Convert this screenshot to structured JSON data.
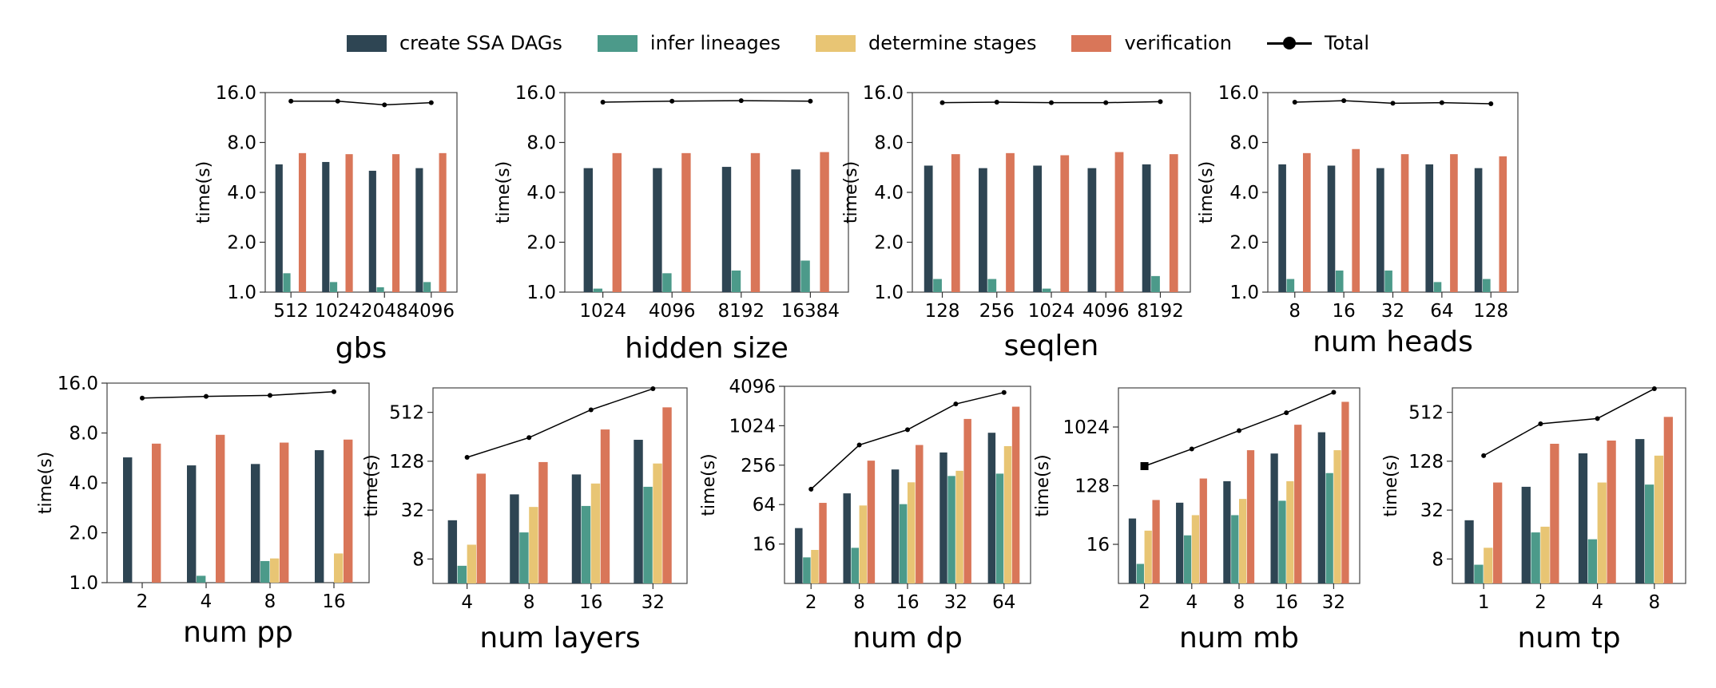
{
  "legend": [
    {
      "label": "create SSA DAGs",
      "color": "#2e4553",
      "kind": "bar"
    },
    {
      "label": "infer lineages",
      "color": "#4c9a8a",
      "kind": "bar"
    },
    {
      "label": "determine stages",
      "color": "#e8c574",
      "kind": "bar"
    },
    {
      "label": "verification",
      "color": "#d97659",
      "kind": "bar"
    },
    {
      "label": "Total",
      "color": "#000000",
      "kind": "line"
    }
  ],
  "chart_data": [
    {
      "type": "bar",
      "xlabel": "gbs",
      "ylabel": "time(s)",
      "ylim": [
        1,
        16
      ],
      "yscale": "log2",
      "yticks": [
        "1.0",
        "2.0",
        "4.0",
        "8.0",
        "16.0"
      ],
      "categories": [
        "512",
        "1024",
        "2048",
        "4096"
      ],
      "series": [
        {
          "name": "create SSA DAGs",
          "values": [
            5.9,
            6.1,
            5.4,
            5.6
          ]
        },
        {
          "name": "infer lineages",
          "values": [
            1.3,
            1.15,
            1.07,
            1.15
          ]
        },
        {
          "name": "determine stages",
          "values": [
            1.0,
            1.0,
            1.0,
            1.0
          ]
        },
        {
          "name": "verification",
          "values": [
            6.9,
            6.8,
            6.8,
            6.9
          ]
        },
        {
          "name": "Total",
          "values": [
            14.2,
            14.2,
            13.5,
            13.9
          ]
        }
      ]
    },
    {
      "type": "bar",
      "xlabel": "hidden size",
      "ylabel": "time(s)",
      "ylim": [
        1,
        16
      ],
      "yscale": "log2",
      "yticks": [
        "1.0",
        "2.0",
        "4.0",
        "8.0",
        "16.0"
      ],
      "categories": [
        "1024",
        "4096",
        "8192",
        "16384"
      ],
      "series": [
        {
          "name": "create SSA DAGs",
          "values": [
            5.6,
            5.6,
            5.7,
            5.5
          ]
        },
        {
          "name": "infer lineages",
          "values": [
            1.05,
            1.3,
            1.35,
            1.55
          ]
        },
        {
          "name": "determine stages",
          "values": [
            1.0,
            1.0,
            1.0,
            1.0
          ]
        },
        {
          "name": "verification",
          "values": [
            6.9,
            6.9,
            6.9,
            7.0
          ]
        },
        {
          "name": "Total",
          "values": [
            14.0,
            14.2,
            14.3,
            14.2
          ]
        }
      ]
    },
    {
      "type": "bar",
      "xlabel": "seqlen",
      "ylabel": "time(s)",
      "ylim": [
        1,
        16
      ],
      "yscale": "log2",
      "yticks": [
        "1.0",
        "2.0",
        "4.0",
        "8.0",
        "16.0"
      ],
      "categories": [
        "128",
        "256",
        "1024",
        "4096",
        "8192"
      ],
      "series": [
        {
          "name": "create SSA DAGs",
          "values": [
            5.8,
            5.6,
            5.8,
            5.6,
            5.9
          ]
        },
        {
          "name": "infer lineages",
          "values": [
            1.2,
            1.2,
            1.05,
            1.0,
            1.25
          ]
        },
        {
          "name": "determine stages",
          "values": [
            1.0,
            1.0,
            1.0,
            1.0,
            1.0
          ]
        },
        {
          "name": "verification",
          "values": [
            6.8,
            6.9,
            6.7,
            7.0,
            6.8
          ]
        },
        {
          "name": "Total",
          "values": [
            13.9,
            14.0,
            13.9,
            13.9,
            14.1
          ]
        }
      ]
    },
    {
      "type": "bar",
      "xlabel": "num heads",
      "ylabel": "time(s)",
      "ylim": [
        1,
        16
      ],
      "yscale": "log2",
      "yticks": [
        "1.0",
        "2.0",
        "4.0",
        "8.0",
        "16.0"
      ],
      "categories": [
        "8",
        "16",
        "32",
        "64",
        "128"
      ],
      "series": [
        {
          "name": "create SSA DAGs",
          "values": [
            5.9,
            5.8,
            5.6,
            5.9,
            5.6
          ]
        },
        {
          "name": "infer lineages",
          "values": [
            1.2,
            1.35,
            1.35,
            1.15,
            1.2
          ]
        },
        {
          "name": "determine stages",
          "values": [
            1.0,
            1.0,
            1.0,
            1.0,
            1.0
          ]
        },
        {
          "name": "verification",
          "values": [
            6.9,
            7.3,
            6.8,
            6.8,
            6.6
          ]
        },
        {
          "name": "Total",
          "values": [
            14.0,
            14.3,
            13.8,
            13.9,
            13.7
          ]
        }
      ]
    },
    {
      "type": "bar",
      "xlabel": "num pp",
      "ylabel": "time(s)",
      "ylim": [
        1,
        16
      ],
      "yscale": "log2",
      "yticks": [
        "1.0",
        "2.0",
        "4.0",
        "8.0",
        "16.0"
      ],
      "categories": [
        "2",
        "4",
        "8",
        "16"
      ],
      "series": [
        {
          "name": "create SSA DAGs",
          "values": [
            5.7,
            5.1,
            5.2,
            6.3
          ]
        },
        {
          "name": "infer lineages",
          "values": [
            1.0,
            1.1,
            1.35,
            1.0
          ]
        },
        {
          "name": "determine stages",
          "values": [
            1.0,
            1.0,
            1.4,
            1.5
          ]
        },
        {
          "name": "verification",
          "values": [
            6.9,
            7.8,
            7.0,
            7.3
          ]
        },
        {
          "name": "Total",
          "values": [
            13.0,
            13.3,
            13.5,
            14.2
          ]
        }
      ]
    },
    {
      "type": "bar",
      "xlabel": "num layers",
      "ylabel": "time(s)",
      "ylim": [
        4,
        1024
      ],
      "yscale": "log2",
      "yticks": [
        "8",
        "32",
        "128",
        "512"
      ],
      "categories": [
        "4",
        "8",
        "16",
        "32"
      ],
      "series": [
        {
          "name": "create SSA DAGs",
          "values": [
            24,
            50,
            88,
            235
          ]
        },
        {
          "name": "infer lineages",
          "values": [
            6.6,
            17,
            36,
            62
          ]
        },
        {
          "name": "determine stages",
          "values": [
            12,
            35,
            68,
            120
          ]
        },
        {
          "name": "verification",
          "values": [
            90,
            125,
            315,
            590
          ]
        },
        {
          "name": "Total",
          "values": [
            143,
            250,
            550,
            1000
          ]
        }
      ]
    },
    {
      "type": "bar",
      "xlabel": "num dp",
      "ylabel": "time(s)",
      "ylim": [
        4,
        4096
      ],
      "yscale": "log2",
      "yticks": [
        "16",
        "64",
        "256",
        "1024",
        "4096"
      ],
      "categories": [
        "2",
        "8",
        "16",
        "32",
        "64"
      ],
      "series": [
        {
          "name": "create SSA DAGs",
          "values": [
            28,
            95,
            220,
            400,
            800
          ]
        },
        {
          "name": "infer lineages",
          "values": [
            10,
            14,
            65,
            175,
            190
          ]
        },
        {
          "name": "determine stages",
          "values": [
            13,
            62,
            140,
            210,
            500
          ]
        },
        {
          "name": "verification",
          "values": [
            68,
            300,
            520,
            1300,
            2000
          ]
        },
        {
          "name": "Total",
          "values": [
            110,
            520,
            890,
            2200,
            3300
          ]
        }
      ]
    },
    {
      "type": "bar",
      "xlabel": "num mb",
      "ylabel": "time(s)",
      "ylim": [
        4,
        4096
      ],
      "yscale": "log2",
      "yticks": [
        "16",
        "128",
        "1024"
      ],
      "categories": [
        "2",
        "4",
        "8",
        "16",
        "32"
      ],
      "series": [
        {
          "name": "create SSA DAGs",
          "values": [
            40,
            70,
            150,
            400,
            850
          ]
        },
        {
          "name": "infer lineages",
          "values": [
            8,
            22,
            45,
            75,
            200
          ]
        },
        {
          "name": "determine stages",
          "values": [
            26,
            45,
            80,
            150,
            450
          ]
        },
        {
          "name": "verification",
          "values": [
            77,
            165,
            450,
            1110,
            2500
          ]
        },
        {
          "name": "Total",
          "values": [
            256,
            470,
            900,
            1700,
            3500
          ]
        }
      ]
    },
    {
      "type": "bar",
      "xlabel": "num tp",
      "ylabel": "time(s)",
      "ylim": [
        4,
        1024
      ],
      "yscale": "log2",
      "yticks": [
        "8",
        "32",
        "128",
        "512"
      ],
      "categories": [
        "1",
        "2",
        "4",
        "8"
      ],
      "series": [
        {
          "name": "create SSA DAGs",
          "values": [
            24,
            62,
            160,
            240
          ]
        },
        {
          "name": "infer lineages",
          "values": [
            6.8,
            17,
            14,
            66
          ]
        },
        {
          "name": "determine stages",
          "values": [
            11,
            20,
            70,
            150
          ]
        },
        {
          "name": "verification",
          "values": [
            70,
            210,
            230,
            450
          ]
        },
        {
          "name": "Total",
          "values": [
            150,
            370,
            430,
            1000
          ]
        }
      ]
    }
  ]
}
